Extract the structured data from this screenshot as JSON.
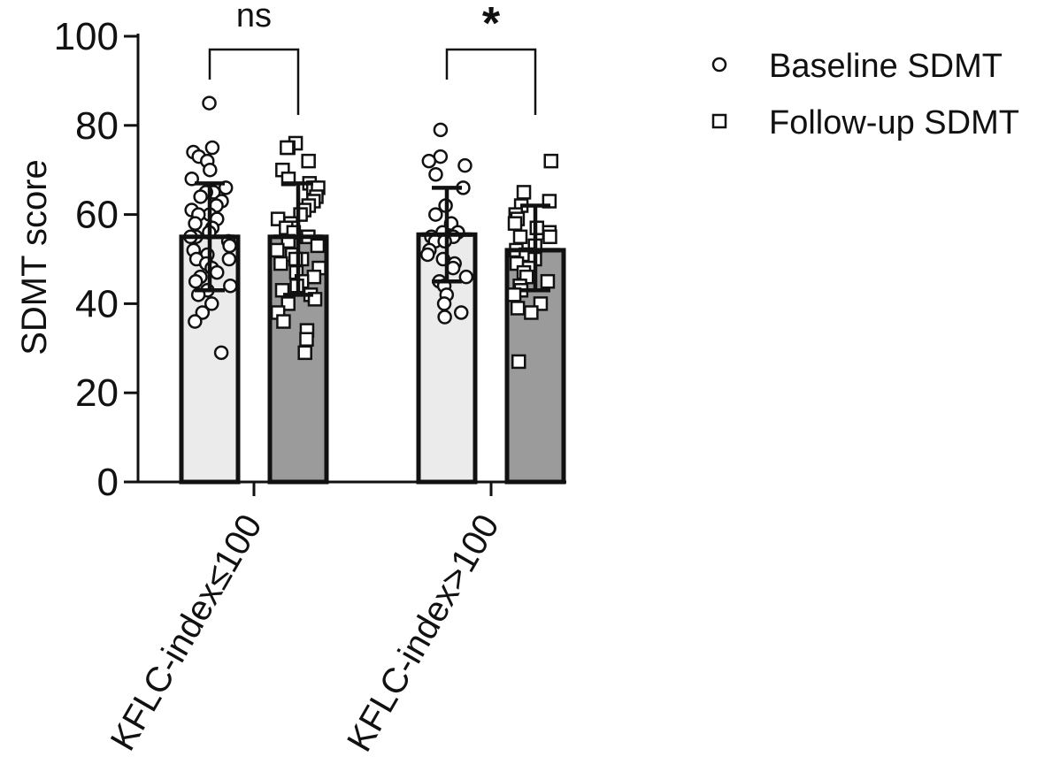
{
  "chart_data": {
    "type": "bar",
    "ylabel": "SDMT score",
    "ylim": [
      0,
      100
    ],
    "yticks": [
      "0",
      "20",
      "40",
      "60",
      "80",
      "100"
    ],
    "categories": [
      "KFLC-index≤100",
      "KFLC-index>100"
    ],
    "legend_placement": "top-right",
    "series": [
      {
        "name": "Baseline SDMT",
        "marker": "circle",
        "fill": "#ebebeb",
        "means": [
          55,
          55.5
        ],
        "sd_upper": [
          67,
          66
        ],
        "sd_lower": [
          43,
          45
        ],
        "points": [
          [
            85,
            75,
            74,
            73,
            72,
            70,
            68,
            66,
            65,
            65,
            64,
            63,
            62,
            61,
            60,
            60,
            59,
            58,
            57,
            56,
            55,
            55,
            54,
            53,
            52,
            51,
            50,
            50,
            49,
            48,
            47,
            46,
            45,
            44,
            43,
            42,
            40,
            38,
            36,
            29
          ],
          [
            79,
            73,
            72,
            71,
            69,
            66,
            62,
            60,
            58,
            56,
            56,
            55,
            55,
            54,
            54,
            52,
            51,
            50,
            49,
            48,
            46,
            45,
            44,
            42,
            40,
            38,
            37
          ]
        ]
      },
      {
        "name": "Follow-up SDMT",
        "marker": "square",
        "fill": "#9b9b9b",
        "means": [
          55,
          52
        ],
        "sd_upper": [
          67,
          62
        ],
        "sd_lower": [
          42,
          43
        ],
        "points": [
          [
            76,
            75,
            75,
            72,
            70,
            68,
            67,
            66,
            66,
            64,
            63,
            62,
            61,
            60,
            59,
            58,
            57,
            57,
            56,
            55,
            55,
            54,
            53,
            52,
            51,
            50,
            50,
            49,
            48,
            47,
            46,
            45,
            44,
            43,
            42,
            41,
            40,
            38,
            36,
            34,
            32,
            29
          ],
          [
            72,
            65,
            63,
            62,
            60,
            59,
            58,
            57,
            56,
            55,
            55,
            53,
            52,
            51,
            50,
            49,
            48,
            47,
            46,
            45,
            44,
            43,
            42,
            40,
            39,
            38,
            27
          ]
        ]
      }
    ],
    "annotations": [
      {
        "label": "ns",
        "category": 0
      },
      {
        "label": "*",
        "category": 1
      }
    ]
  }
}
